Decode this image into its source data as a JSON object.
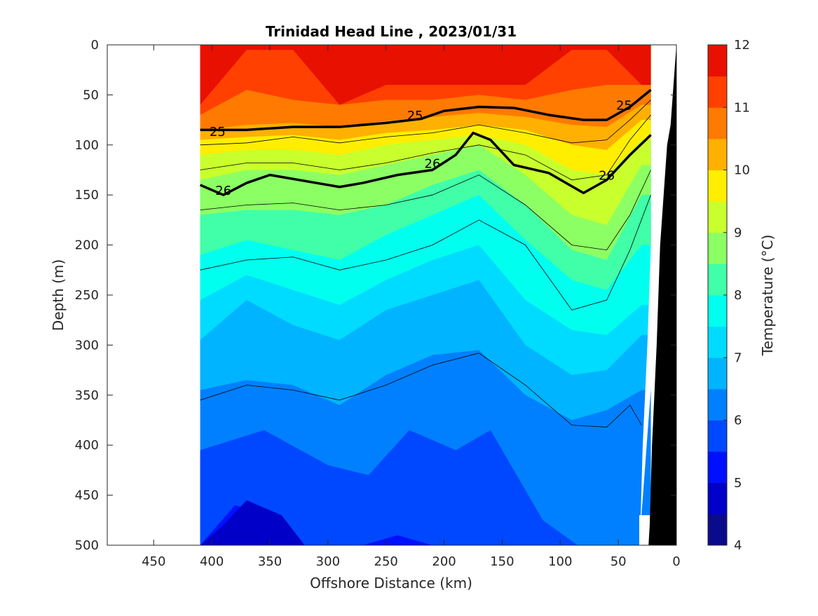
{
  "chart_data": {
    "type": "heatmap",
    "title": "Trinidad Head Line , 2023/01/31",
    "xlabel": "Offshore Distance (km)",
    "ylabel": "Depth (m)",
    "colorbar_label": "Temperature (°C)",
    "xlim": [
      490,
      0
    ],
    "ylim": [
      500,
      0
    ],
    "x_ticks": [
      450,
      400,
      350,
      300,
      250,
      200,
      150,
      100,
      50,
      0
    ],
    "y_ticks": [
      0,
      50,
      100,
      150,
      200,
      250,
      300,
      350,
      400,
      450,
      500
    ],
    "colorbar_ticks": [
      4,
      5,
      6,
      7,
      8,
      9,
      10,
      11,
      12
    ],
    "colorbar_levels": [
      4,
      4.5,
      5,
      5.5,
      6,
      6.5,
      7,
      7.5,
      8,
      8.5,
      9,
      9.5,
      10,
      10.5,
      11,
      11.5,
      12
    ],
    "colorbar_colors": [
      "#0a0a8c",
      "#0000c8",
      "#0010ff",
      "#0048ff",
      "#0080ff",
      "#00b4ff",
      "#00dcff",
      "#00ffee",
      "#40ffa8",
      "#8cff64",
      "#c8ff2c",
      "#ffee00",
      "#ffb000",
      "#ff7a00",
      "#ff4000",
      "#e81000",
      "#a80000"
    ],
    "data_x_extent": [
      410,
      22
    ],
    "x_stations": [
      410,
      370,
      330,
      290,
      250,
      210,
      170,
      130,
      90,
      60,
      30
    ],
    "temperature_isotherm_depths": {
      "6.5": [
        345,
        335,
        340,
        360,
        330,
        310,
        305,
        350,
        375,
        365,
        345
      ],
      "7.0": [
        295,
        255,
        280,
        295,
        265,
        250,
        235,
        300,
        330,
        325,
        290
      ],
      "7.5": [
        255,
        230,
        245,
        260,
        235,
        215,
        200,
        255,
        285,
        290,
        260
      ],
      "8.0": [
        210,
        195,
        205,
        215,
        190,
        170,
        150,
        195,
        235,
        245,
        200
      ],
      "8.5": [
        170,
        165,
        165,
        170,
        160,
        140,
        125,
        160,
        205,
        215,
        150
      ],
      "9.0": [
        135,
        125,
        125,
        130,
        120,
        110,
        100,
        130,
        170,
        180,
        120
      ],
      "9.5": [
        110,
        105,
        105,
        110,
        100,
        95,
        90,
        100,
        125,
        130,
        95
      ],
      "10.0": [
        95,
        92,
        90,
        95,
        88,
        85,
        80,
        85,
        100,
        105,
        75
      ],
      "10.5": [
        85,
        80,
        78,
        82,
        76,
        72,
        68,
        72,
        80,
        82,
        60
      ],
      "11.0": [
        70,
        45,
        55,
        60,
        55,
        55,
        50,
        55,
        45,
        40,
        40
      ],
      "11.5": [
        60,
        5,
        5,
        60,
        40,
        40,
        40,
        40,
        5,
        5,
        40
      ]
    },
    "deep_patches": [
      {
        "level": 5.5,
        "x": [
          410,
          355,
          300,
          265,
          230,
          190,
          160,
          115,
          85
        ],
        "depth": [
          405,
          385,
          420,
          430,
          385,
          405,
          385,
          475,
          500
        ]
      },
      {
        "level": 5.0,
        "x": [
          410,
          380,
          350,
          330,
          300,
          270,
          240,
          210,
          180,
          150,
          110
        ],
        "depth": [
          500,
          460,
          470,
          500,
          500,
          500,
          490,
          500,
          500,
          500,
          500
        ]
      },
      {
        "level": 4.5,
        "x": [
          410,
          390,
          370,
          340,
          320
        ],
        "depth": [
          500,
          480,
          455,
          470,
          500
        ]
      }
    ],
    "density_contours": [
      {
        "label": "25",
        "x": [
          410,
          370,
          330,
          290,
          250,
          220,
          200,
          170,
          140,
          110,
          80,
          60,
          40,
          22
        ],
        "depth": [
          85,
          85,
          82,
          82,
          78,
          74,
          66,
          62,
          63,
          70,
          75,
          75,
          62,
          45
        ]
      },
      {
        "label": "26",
        "x": [
          410,
          390,
          370,
          350,
          310,
          290,
          270,
          240,
          210,
          190,
          175,
          160,
          140,
          110,
          80,
          60,
          40,
          22
        ],
        "depth": [
          140,
          150,
          138,
          130,
          138,
          142,
          138,
          130,
          125,
          110,
          88,
          95,
          120,
          128,
          148,
          135,
          110,
          90
        ]
      }
    ],
    "thin_contours": [
      {
        "x": [
          410,
          370,
          330,
          290,
          250,
          210,
          170,
          130,
          90,
          60,
          40,
          30
        ],
        "depth": [
          355,
          340,
          345,
          355,
          340,
          320,
          308,
          340,
          380,
          382,
          360,
          380
        ]
      },
      {
        "x": [
          410,
          370,
          330,
          290,
          250,
          210,
          170,
          130,
          90,
          60,
          40,
          22
        ],
        "depth": [
          225,
          215,
          212,
          225,
          215,
          200,
          175,
          200,
          265,
          255,
          205,
          150
        ]
      },
      {
        "x": [
          410,
          370,
          330,
          290,
          250,
          210,
          170,
          130,
          90,
          60,
          40,
          22
        ],
        "depth": [
          165,
          160,
          158,
          165,
          160,
          150,
          130,
          160,
          200,
          205,
          170,
          125
        ]
      },
      {
        "x": [
          410,
          370,
          330,
          290,
          250,
          210,
          170,
          130,
          90,
          60,
          40,
          22
        ],
        "depth": [
          125,
          118,
          118,
          125,
          118,
          108,
          100,
          110,
          135,
          130,
          95,
          70
        ]
      },
      {
        "x": [
          410,
          370,
          330,
          290,
          250,
          210,
          170,
          130,
          90,
          60,
          40,
          22
        ],
        "depth": [
          100,
          98,
          92,
          98,
          92,
          88,
          80,
          88,
          98,
          95,
          75,
          55
        ]
      }
    ],
    "seafloor_km_at_depth": {
      "depth": [
        0,
        80,
        100,
        200,
        300,
        400,
        480,
        500
      ],
      "x": [
        0,
        5,
        8,
        14,
        17,
        21,
        23,
        24
      ]
    }
  }
}
